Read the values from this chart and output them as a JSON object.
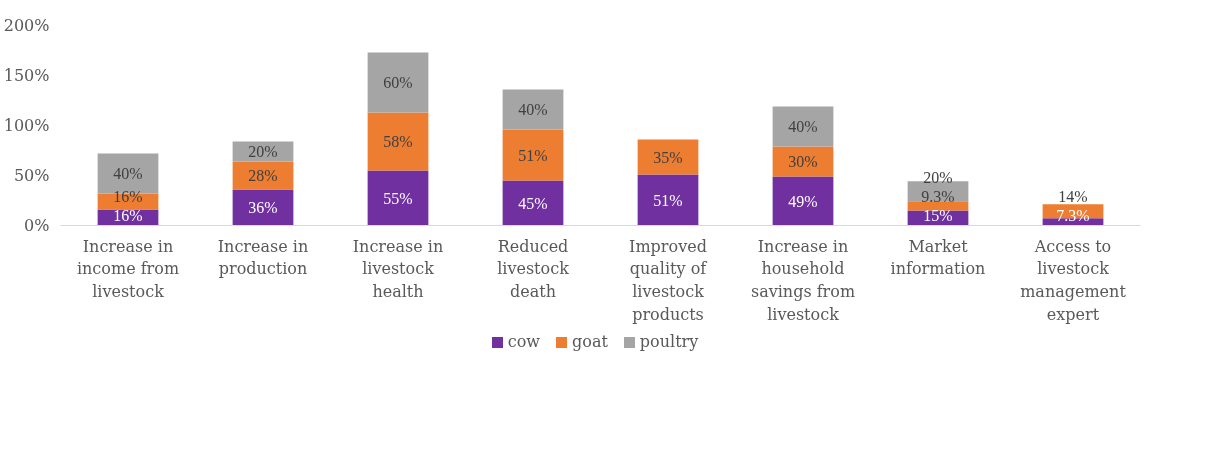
{
  "chart_data": {
    "type": "bar",
    "stacked": true,
    "categories": [
      "Increase in income from livestock",
      "Increase in production",
      "Increase in livestock health",
      "Reduced livestock death",
      "Improved quality of livestock products",
      "Increase in household savings from livestock",
      "Market information",
      "Access to livestock management expert"
    ],
    "series": [
      {
        "name": "cow",
        "color": "#7030a0",
        "values": [
          16,
          36,
          55,
          45,
          51,
          49,
          15,
          7.3
        ],
        "value_labels": [
          "16%",
          "36%",
          "55%",
          "45%",
          "51%",
          "49%",
          "15%",
          "7.3%"
        ]
      },
      {
        "name": "goat",
        "color": "#ed7d31",
        "values": [
          16,
          28,
          58,
          51,
          35,
          30,
          9.3,
          14
        ],
        "value_labels": [
          "16%",
          "28%",
          "58%",
          "51%",
          "35%",
          "30%",
          "9.3%",
          "14%"
        ]
      },
      {
        "name": "poultry",
        "color": "#a5a5a5",
        "values": [
          40,
          20,
          60,
          40,
          null,
          40,
          20,
          null
        ],
        "value_labels": [
          "40%",
          "20%",
          "60%",
          "40%",
          null,
          "40%",
          "20%",
          null
        ]
      }
    ],
    "ylim": [
      0,
      200
    ],
    "yticks": [
      {
        "value": 0,
        "label": "0%"
      },
      {
        "value": 50,
        "label": "50%"
      },
      {
        "value": 100,
        "label": "100%"
      },
      {
        "value": 150,
        "label": "150%"
      },
      {
        "value": 200,
        "label": "200%"
      }
    ],
    "grid": false,
    "legend": "bottom"
  }
}
